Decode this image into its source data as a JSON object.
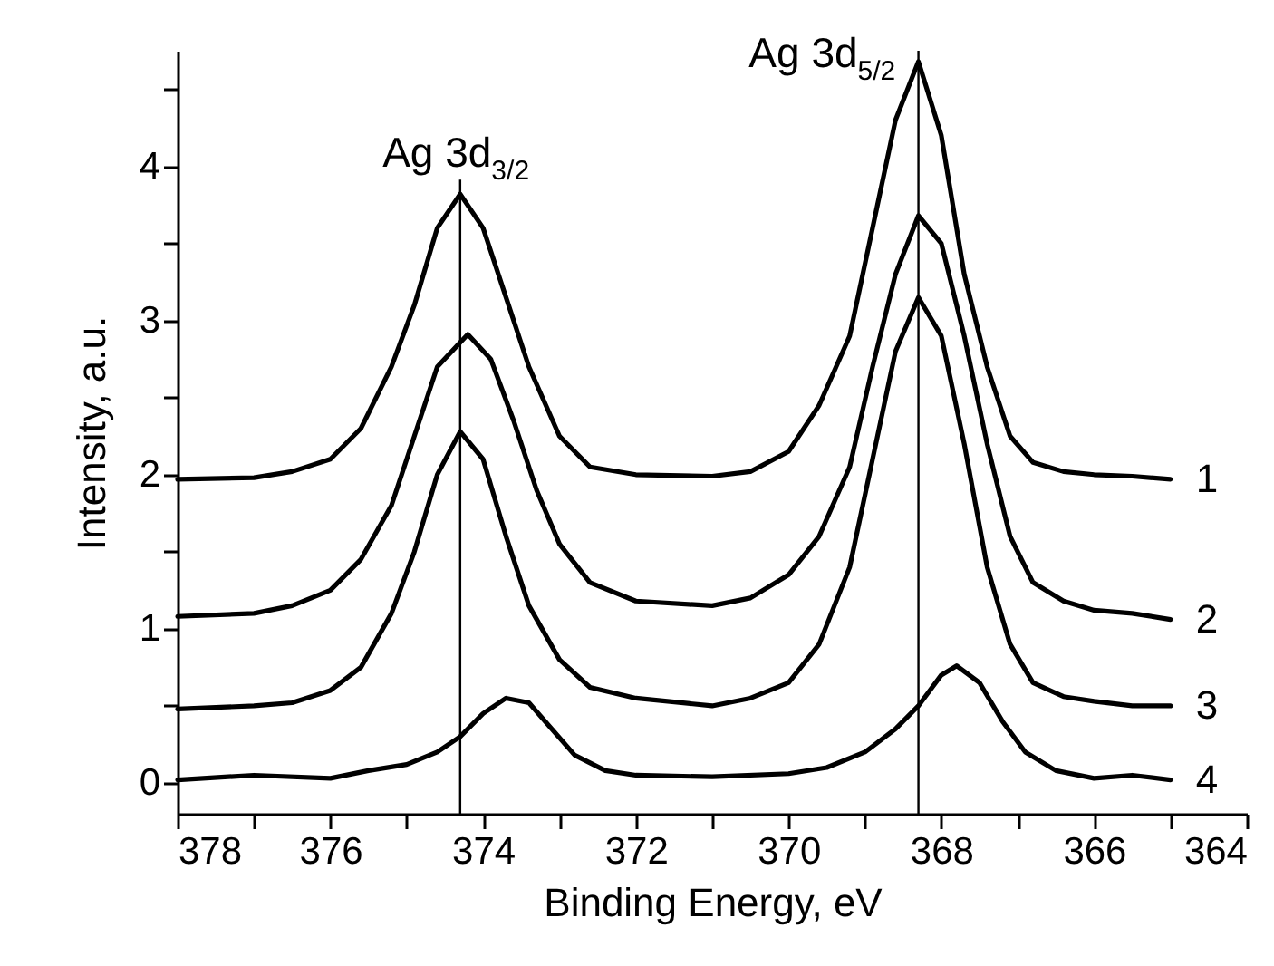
{
  "chart_data": {
    "type": "line",
    "xlabel": "Binding Energy, eV",
    "ylabel": "Intensity, a.u.",
    "xlim": [
      378,
      364
    ],
    "xticks": [
      378,
      {
        "value": 377,
        "label": null
      },
      376,
      {
        "value": 375,
        "label": null
      },
      374,
      {
        "value": 373,
        "label": null
      },
      372,
      {
        "value": 371,
        "label": null
      },
      370,
      {
        "value": 369,
        "label": null
      },
      368,
      {
        "value": 367,
        "label": null
      },
      366,
      {
        "value": 365,
        "label": null
      },
      364
    ],
    "ylim": [
      -0.2,
      4.75
    ],
    "yticks": [
      0,
      {
        "value": 0.5,
        "label": null
      },
      1,
      {
        "value": 1.5,
        "label": null
      },
      2,
      {
        "value": 2.5,
        "label": null
      },
      3,
      {
        "value": 3.5,
        "label": null
      },
      4,
      {
        "value": 4.5,
        "label": null
      }
    ],
    "grid": false,
    "legend": false,
    "line_style": "solid",
    "series": [
      {
        "name": "1",
        "color": "#000000",
        "x": [
          378,
          377,
          376.5,
          376,
          375.6,
          375.2,
          374.9,
          374.6,
          374.3,
          374.0,
          373.7,
          373.4,
          373.0,
          372.6,
          372,
          371,
          370.5,
          370,
          369.6,
          369.2,
          368.9,
          368.6,
          368.3,
          368.0,
          367.7,
          367.4,
          367.1,
          366.8,
          366.4,
          366,
          365.5,
          365
        ],
        "values": [
          1.97,
          1.98,
          2.02,
          2.1,
          2.3,
          2.7,
          3.1,
          3.6,
          3.82,
          3.6,
          3.15,
          2.7,
          2.25,
          2.05,
          2.0,
          1.99,
          2.02,
          2.15,
          2.45,
          2.9,
          3.6,
          4.3,
          4.68,
          4.2,
          3.3,
          2.7,
          2.25,
          2.08,
          2.02,
          2.0,
          1.99,
          1.97
        ]
      },
      {
        "name": "2",
        "color": "#000000",
        "x": [
          378,
          377,
          376.5,
          376,
          375.6,
          375.2,
          374.9,
          374.6,
          374.2,
          373.9,
          373.6,
          373.3,
          373.0,
          372.6,
          372,
          371,
          370.5,
          370,
          369.6,
          369.2,
          368.9,
          368.6,
          368.3,
          368.0,
          367.7,
          367.4,
          367.1,
          366.8,
          366.4,
          366,
          365.5,
          365
        ],
        "values": [
          1.08,
          1.1,
          1.15,
          1.25,
          1.45,
          1.8,
          2.25,
          2.7,
          2.91,
          2.75,
          2.35,
          1.9,
          1.55,
          1.3,
          1.18,
          1.15,
          1.2,
          1.35,
          1.6,
          2.05,
          2.7,
          3.3,
          3.68,
          3.5,
          2.9,
          2.2,
          1.6,
          1.3,
          1.18,
          1.12,
          1.1,
          1.06
        ]
      },
      {
        "name": "3",
        "color": "#000000",
        "x": [
          378,
          377,
          376.5,
          376,
          375.6,
          375.2,
          374.9,
          374.6,
          374.3,
          374.0,
          373.7,
          373.4,
          373.0,
          372.6,
          372,
          371,
          370.5,
          370,
          369.6,
          369.2,
          368.9,
          368.6,
          368.3,
          368.0,
          367.7,
          367.4,
          367.1,
          366.8,
          366.4,
          366,
          365.5,
          365
        ],
        "values": [
          0.48,
          0.5,
          0.52,
          0.6,
          0.75,
          1.1,
          1.5,
          2.0,
          2.28,
          2.1,
          1.6,
          1.15,
          0.8,
          0.62,
          0.55,
          0.5,
          0.55,
          0.65,
          0.9,
          1.4,
          2.1,
          2.8,
          3.15,
          2.9,
          2.2,
          1.4,
          0.9,
          0.65,
          0.56,
          0.53,
          0.5,
          0.5
        ]
      },
      {
        "name": "4",
        "color": "#000000",
        "x": [
          378,
          377,
          376,
          375.5,
          375,
          374.6,
          374.3,
          374.0,
          373.7,
          373.4,
          373.1,
          372.8,
          372.4,
          372,
          371,
          370,
          369.5,
          369,
          368.6,
          368.3,
          368.0,
          367.8,
          367.5,
          367.2,
          366.9,
          366.5,
          366,
          365.5,
          365
        ],
        "values": [
          0.02,
          0.05,
          0.03,
          0.08,
          0.12,
          0.2,
          0.3,
          0.45,
          0.55,
          0.52,
          0.35,
          0.18,
          0.08,
          0.05,
          0.04,
          0.06,
          0.1,
          0.2,
          0.35,
          0.5,
          0.7,
          0.76,
          0.65,
          0.4,
          0.2,
          0.08,
          0.03,
          0.05,
          0.02
        ]
      }
    ],
    "ref_lines": [
      {
        "axis": "x",
        "value": 374.3,
        "color": "#000000"
      },
      {
        "axis": "x",
        "value": 368.3,
        "color": "#000000"
      }
    ],
    "annotations": [
      {
        "text": "Ag 3d$_{3/2}$",
        "x": 374.3,
        "y": 3.82
      },
      {
        "text": "Ag 3d$_{5/2}$",
        "x": 368.3,
        "y": 4.68
      }
    ]
  }
}
